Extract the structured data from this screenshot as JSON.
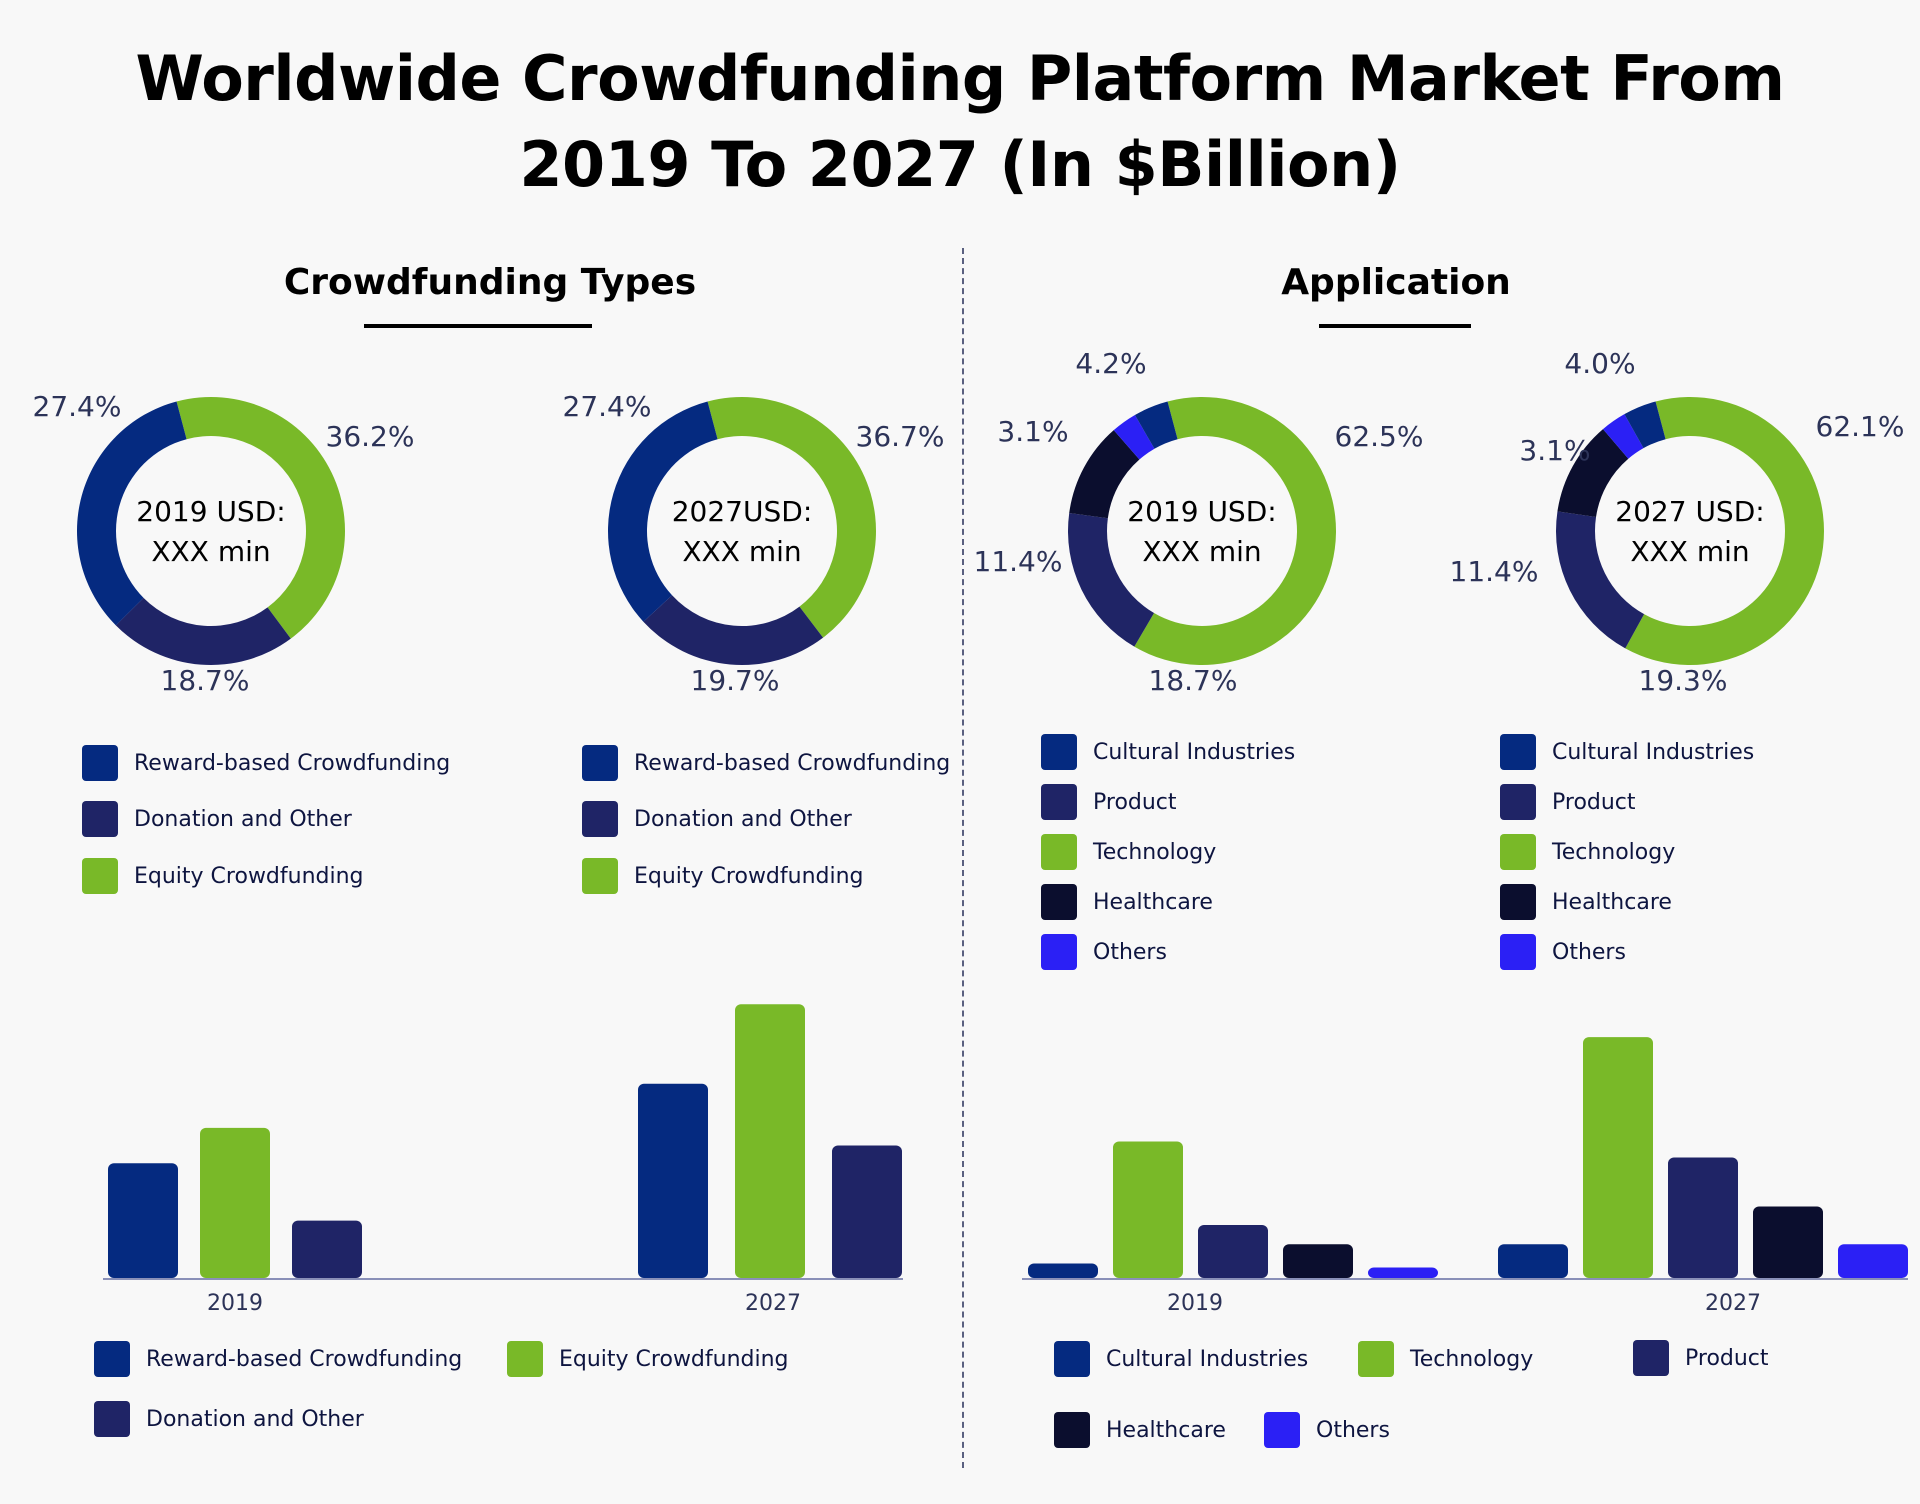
{
  "title_line1": "Worldwide Crowdfunding Platform Market From",
  "title_line2": "2019 To 2027 (In $Billion)",
  "colors": {
    "reward": "#052a80",
    "donation": "#1f2466",
    "equity": "#79b928",
    "cultural": "#052a80",
    "product": "#1f2466",
    "technology": "#79b928",
    "healthcare": "#0b0e2e",
    "others": "#2b20f5"
  },
  "sections": {
    "types_title": "Crowdfunding Types",
    "application_title": "Application"
  },
  "chart_data": [
    {
      "type": "pie",
      "variant": "donut",
      "center_text": [
        "2019 USD:",
        "XXX min"
      ],
      "series": [
        {
          "name": "Reward-based Crowdfunding",
          "value": 27.4,
          "label": "27.4%",
          "color": "#052a80"
        },
        {
          "name": "Equity Crowdfunding",
          "value": 36.2,
          "label": "36.2%",
          "color": "#79b928"
        },
        {
          "name": "Donation and Other",
          "value": 18.7,
          "label": "18.7%",
          "color": "#1f2466"
        }
      ],
      "legend": [
        "Reward-based Crowdfunding",
        "Donation and Other",
        "Equity Crowdfunding"
      ]
    },
    {
      "type": "pie",
      "variant": "donut",
      "center_text": [
        "2027USD:",
        "XXX min"
      ],
      "series": [
        {
          "name": "Reward-based Crowdfunding",
          "value": 27.4,
          "label": "27.4%",
          "color": "#052a80"
        },
        {
          "name": "Equity Crowdfunding",
          "value": 36.7,
          "label": "36.7%",
          "color": "#79b928"
        },
        {
          "name": "Donation and Other",
          "value": 19.7,
          "label": "19.7%",
          "color": "#1f2466"
        }
      ],
      "legend": [
        "Reward-based Crowdfunding",
        "Donation and Other",
        "Equity Crowdfunding"
      ]
    },
    {
      "type": "pie",
      "variant": "donut",
      "center_text": [
        "2019 USD:",
        "XXX min"
      ],
      "series": [
        {
          "name": "Cultural Industries",
          "value": 4.2,
          "label": "4.2%",
          "color": "#052a80"
        },
        {
          "name": "Technology",
          "value": 62.5,
          "label": "62.5%",
          "color": "#79b928"
        },
        {
          "name": "Product",
          "value": 18.7,
          "label": "18.7%",
          "color": "#1f2466"
        },
        {
          "name": "Healthcare",
          "value": 11.4,
          "label": "11.4%",
          "color": "#0b0e2e"
        },
        {
          "name": "Others",
          "value": 3.1,
          "label": "3.1%",
          "color": "#2b20f5"
        }
      ],
      "legend": [
        "Cultural Industries",
        "Product",
        "Technology",
        "Healthcare",
        "Others"
      ]
    },
    {
      "type": "pie",
      "variant": "donut",
      "center_text": [
        "2027 USD:",
        "XXX min"
      ],
      "series": [
        {
          "name": "Cultural Industries",
          "value": 4.0,
          "label": "4.0%",
          "color": "#052a80"
        },
        {
          "name": "Technology",
          "value": 62.1,
          "label": "62.1%",
          "color": "#79b928"
        },
        {
          "name": "Product",
          "value": 19.3,
          "label": "19.3%",
          "color": "#1f2466"
        },
        {
          "name": "Healthcare",
          "value": 11.4,
          "label": "11.4%",
          "color": "#0b0e2e"
        },
        {
          "name": "Others",
          "value": 3.1,
          "label": "3.1%",
          "color": "#2b20f5"
        }
      ],
      "legend": [
        "Cultural Industries",
        "Product",
        "Technology",
        "Healthcare",
        "Others"
      ]
    },
    {
      "type": "bar",
      "categories": [
        "2019",
        "2027"
      ],
      "ylim": [
        0,
        31
      ],
      "series": [
        {
          "name": "Reward-based Crowdfunding",
          "values": [
            13,
            22
          ],
          "color": "#052a80"
        },
        {
          "name": "Equity Crowdfunding",
          "values": [
            17,
            31
          ],
          "color": "#79b928"
        },
        {
          "name": "Donation and Other",
          "values": [
            6.5,
            15
          ],
          "color": "#1f2466"
        }
      ],
      "legend": [
        "Reward-based Crowdfunding",
        "Equity Crowdfunding",
        "Donation and Other"
      ]
    },
    {
      "type": "bar",
      "categories": [
        "2019",
        "2027"
      ],
      "ylim": [
        0,
        30
      ],
      "series": [
        {
          "name": "Cultural Industries",
          "values": [
            1.8,
            4.2
          ],
          "color": "#052a80"
        },
        {
          "name": "Technology",
          "values": [
            17,
            30
          ],
          "color": "#79b928"
        },
        {
          "name": "Product",
          "values": [
            6.6,
            15
          ],
          "color": "#1f2466"
        },
        {
          "name": "Healthcare",
          "values": [
            4.2,
            8.9
          ],
          "color": "#0b0e2e"
        },
        {
          "name": "Others",
          "values": [
            1.3,
            4.2
          ],
          "color": "#2b20f5"
        }
      ],
      "legend": [
        "Cultural Industries",
        "Technology",
        "Product",
        "Healthcare",
        "Others"
      ]
    }
  ]
}
